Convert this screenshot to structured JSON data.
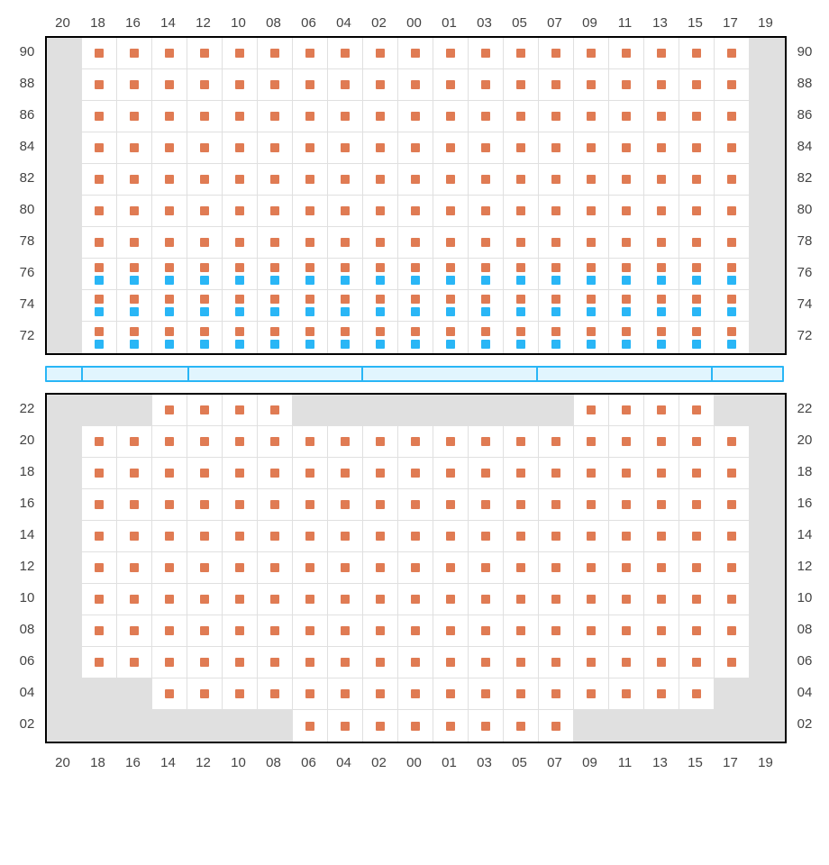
{
  "colors": {
    "seat_available": "#e07b53",
    "seat_special": "#29b6f6",
    "blocked_bg": "#e0e0e0",
    "cell_bg": "#ffffff",
    "grid": "#e0e0e0",
    "border": "#000000",
    "label": "#444444",
    "stage_border": "#29b6f6",
    "stage_fill": "#e1f5fe"
  },
  "columns": [
    "20",
    "18",
    "16",
    "14",
    "12",
    "10",
    "08",
    "06",
    "04",
    "02",
    "00",
    "01",
    "03",
    "05",
    "07",
    "09",
    "11",
    "13",
    "15",
    "17",
    "19"
  ],
  "stage_segments": 6,
  "upper": {
    "rows": [
      {
        "label": "90",
        "cells": [
          "b",
          "a",
          "a",
          "a",
          "a",
          "a",
          "a",
          "a",
          "a",
          "a",
          "a",
          "a",
          "a",
          "a",
          "a",
          "a",
          "a",
          "a",
          "a",
          "a",
          "b"
        ]
      },
      {
        "label": "88",
        "cells": [
          "b",
          "a",
          "a",
          "a",
          "a",
          "a",
          "a",
          "a",
          "a",
          "a",
          "a",
          "a",
          "a",
          "a",
          "a",
          "a",
          "a",
          "a",
          "a",
          "a",
          "b"
        ]
      },
      {
        "label": "86",
        "cells": [
          "b",
          "a",
          "a",
          "a",
          "a",
          "a",
          "a",
          "a",
          "a",
          "a",
          "a",
          "a",
          "a",
          "a",
          "a",
          "a",
          "a",
          "a",
          "a",
          "a",
          "b"
        ]
      },
      {
        "label": "84",
        "cells": [
          "b",
          "a",
          "a",
          "a",
          "a",
          "a",
          "a",
          "a",
          "a",
          "a",
          "a",
          "a",
          "a",
          "a",
          "a",
          "a",
          "a",
          "a",
          "a",
          "a",
          "b"
        ]
      },
      {
        "label": "82",
        "cells": [
          "b",
          "a",
          "a",
          "a",
          "a",
          "a",
          "a",
          "a",
          "a",
          "a",
          "a",
          "a",
          "a",
          "a",
          "a",
          "a",
          "a",
          "a",
          "a",
          "a",
          "b"
        ]
      },
      {
        "label": "80",
        "cells": [
          "b",
          "a",
          "a",
          "a",
          "a",
          "a",
          "a",
          "a",
          "a",
          "a",
          "a",
          "a",
          "a",
          "a",
          "a",
          "a",
          "a",
          "a",
          "a",
          "a",
          "b"
        ]
      },
      {
        "label": "78",
        "cells": [
          "b",
          "a",
          "a",
          "a",
          "a",
          "a",
          "a",
          "a",
          "a",
          "a",
          "a",
          "a",
          "a",
          "a",
          "a",
          "a",
          "a",
          "a",
          "a",
          "a",
          "b"
        ]
      },
      {
        "label": "76",
        "cells": [
          "b",
          "as",
          "as",
          "as",
          "as",
          "as",
          "as",
          "as",
          "as",
          "as",
          "as",
          "as",
          "as",
          "as",
          "as",
          "as",
          "as",
          "as",
          "as",
          "as",
          "b"
        ]
      },
      {
        "label": "74",
        "cells": [
          "b",
          "as",
          "as",
          "as",
          "as",
          "as",
          "as",
          "as",
          "as",
          "as",
          "as",
          "as",
          "as",
          "as",
          "as",
          "as",
          "as",
          "as",
          "as",
          "as",
          "b"
        ]
      },
      {
        "label": "72",
        "cells": [
          "b",
          "as",
          "as",
          "as",
          "as",
          "as",
          "as",
          "as",
          "as",
          "as",
          "as",
          "as",
          "as",
          "as",
          "as",
          "as",
          "as",
          "as",
          "as",
          "as",
          "b"
        ]
      }
    ]
  },
  "lower": {
    "rows": [
      {
        "label": "22",
        "cells": [
          "b",
          "b",
          "b",
          "a",
          "a",
          "a",
          "a",
          "b",
          "b",
          "b",
          "b",
          "b",
          "b",
          "b",
          "b",
          "a",
          "a",
          "a",
          "a",
          "b",
          "b"
        ]
      },
      {
        "label": "20",
        "cells": [
          "b",
          "a",
          "a",
          "a",
          "a",
          "a",
          "a",
          "a",
          "a",
          "a",
          "a",
          "a",
          "a",
          "a",
          "a",
          "a",
          "a",
          "a",
          "a",
          "a",
          "b"
        ]
      },
      {
        "label": "18",
        "cells": [
          "b",
          "a",
          "a",
          "a",
          "a",
          "a",
          "a",
          "a",
          "a",
          "a",
          "a",
          "a",
          "a",
          "a",
          "a",
          "a",
          "a",
          "a",
          "a",
          "a",
          "b"
        ]
      },
      {
        "label": "16",
        "cells": [
          "b",
          "a",
          "a",
          "a",
          "a",
          "a",
          "a",
          "a",
          "a",
          "a",
          "a",
          "a",
          "a",
          "a",
          "a",
          "a",
          "a",
          "a",
          "a",
          "a",
          "b"
        ]
      },
      {
        "label": "14",
        "cells": [
          "b",
          "a",
          "a",
          "a",
          "a",
          "a",
          "a",
          "a",
          "a",
          "a",
          "a",
          "a",
          "a",
          "a",
          "a",
          "a",
          "a",
          "a",
          "a",
          "a",
          "b"
        ]
      },
      {
        "label": "12",
        "cells": [
          "b",
          "a",
          "a",
          "a",
          "a",
          "a",
          "a",
          "a",
          "a",
          "a",
          "a",
          "a",
          "a",
          "a",
          "a",
          "a",
          "a",
          "a",
          "a",
          "a",
          "b"
        ]
      },
      {
        "label": "10",
        "cells": [
          "b",
          "a",
          "a",
          "a",
          "a",
          "a",
          "a",
          "a",
          "a",
          "a",
          "a",
          "a",
          "a",
          "a",
          "a",
          "a",
          "a",
          "a",
          "a",
          "a",
          "b"
        ]
      },
      {
        "label": "08",
        "cells": [
          "b",
          "a",
          "a",
          "a",
          "a",
          "a",
          "a",
          "a",
          "a",
          "a",
          "a",
          "a",
          "a",
          "a",
          "a",
          "a",
          "a",
          "a",
          "a",
          "a",
          "b"
        ]
      },
      {
        "label": "06",
        "cells": [
          "b",
          "a",
          "a",
          "a",
          "a",
          "a",
          "a",
          "a",
          "a",
          "a",
          "a",
          "a",
          "a",
          "a",
          "a",
          "a",
          "a",
          "a",
          "a",
          "a",
          "b"
        ]
      },
      {
        "label": "04",
        "cells": [
          "b",
          "b",
          "b",
          "a",
          "a",
          "a",
          "a",
          "a",
          "a",
          "a",
          "a",
          "a",
          "a",
          "a",
          "a",
          "a",
          "a",
          "a",
          "a",
          "b",
          "b"
        ]
      },
      {
        "label": "02",
        "cells": [
          "b",
          "b",
          "b",
          "b",
          "b",
          "b",
          "b",
          "a",
          "a",
          "a",
          "a",
          "a",
          "a",
          "a",
          "a",
          "b",
          "b",
          "b",
          "b",
          "b",
          "b"
        ]
      }
    ]
  }
}
